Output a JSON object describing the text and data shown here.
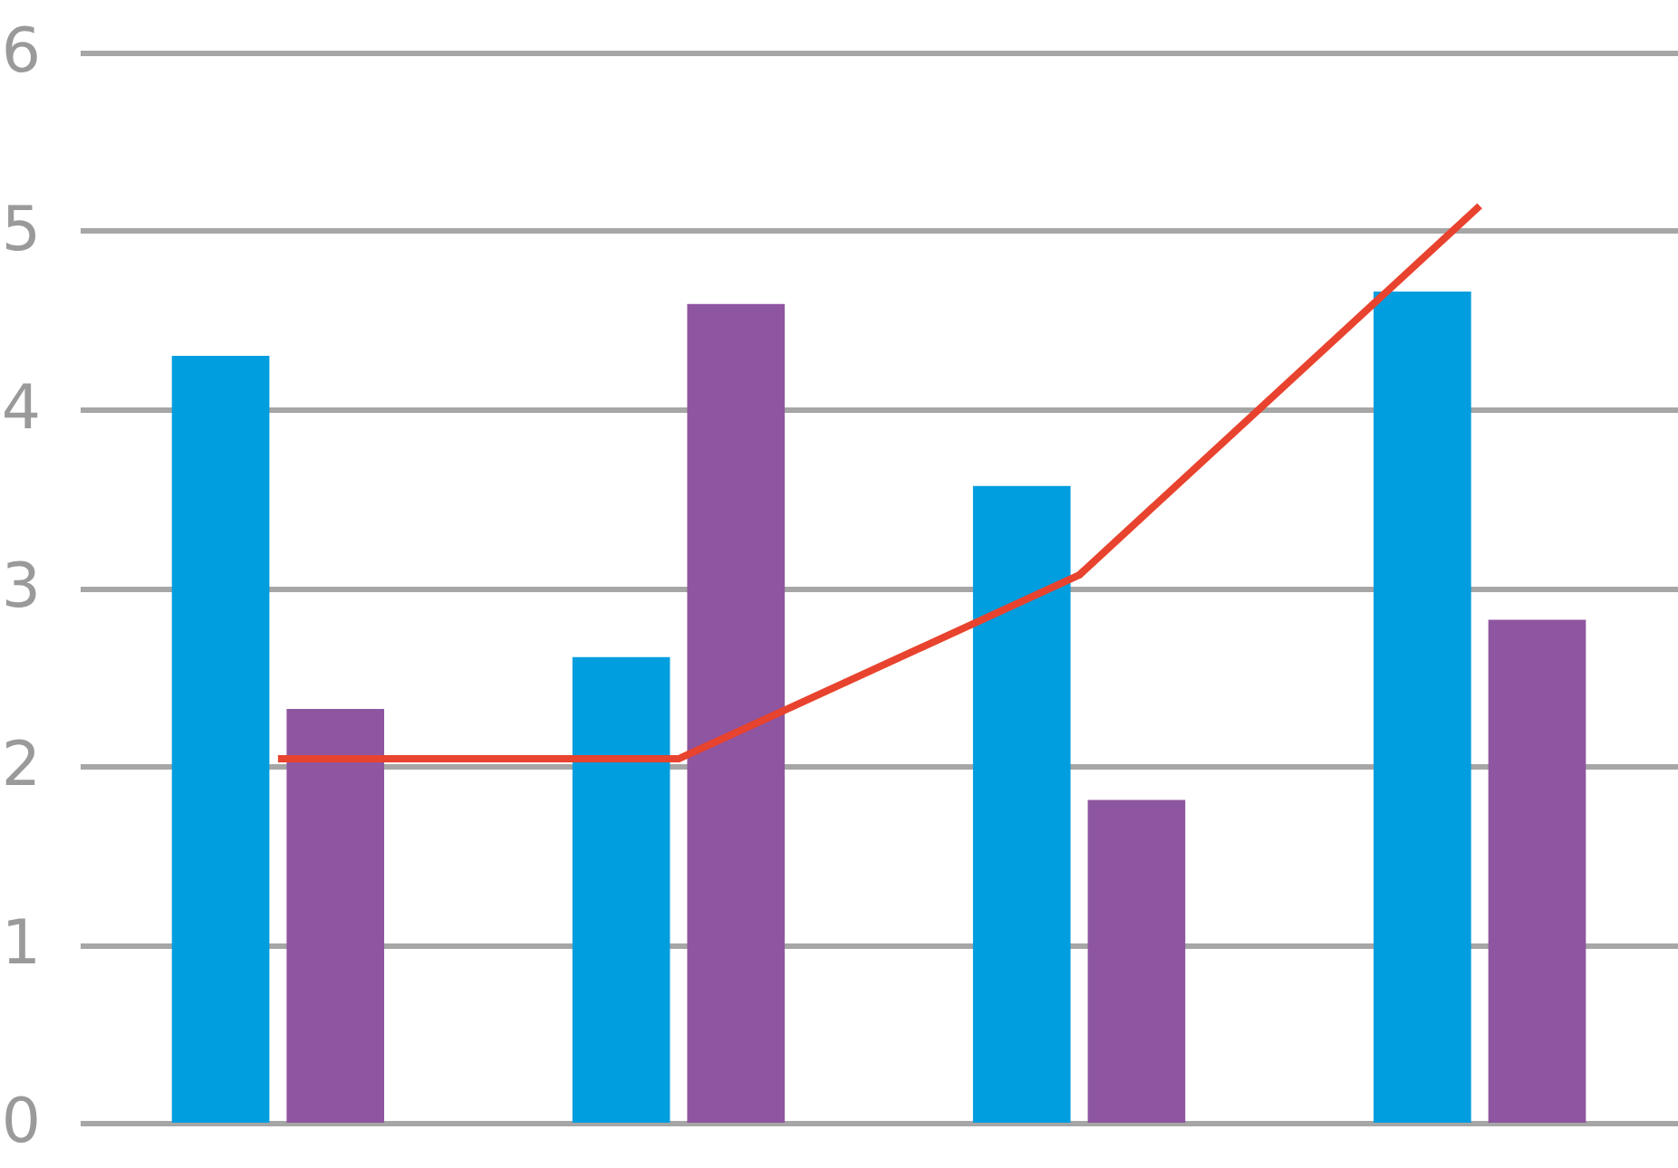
{
  "chart_data": {
    "type": "bar",
    "categories": [
      null,
      null,
      null,
      null
    ],
    "series": [
      {
        "color": "#009ddf",
        "values": [
          4.3,
          2.61,
          3.57,
          4.66
        ]
      },
      {
        "color": "#8e55a0",
        "values": [
          2.32,
          4.59,
          1.81,
          2.82
        ]
      },
      {
        "type": "line",
        "color": "#e8432e",
        "values": [
          2.04,
          2.04,
          3.07,
          5.14
        ]
      }
    ],
    "ylim": [
      0,
      6
    ],
    "yticks": [
      0,
      1,
      2,
      3,
      4,
      5,
      6
    ],
    "grid": "y",
    "tick_labels": "y",
    "legend": false,
    "marker": "none",
    "line_style": "solid"
  }
}
